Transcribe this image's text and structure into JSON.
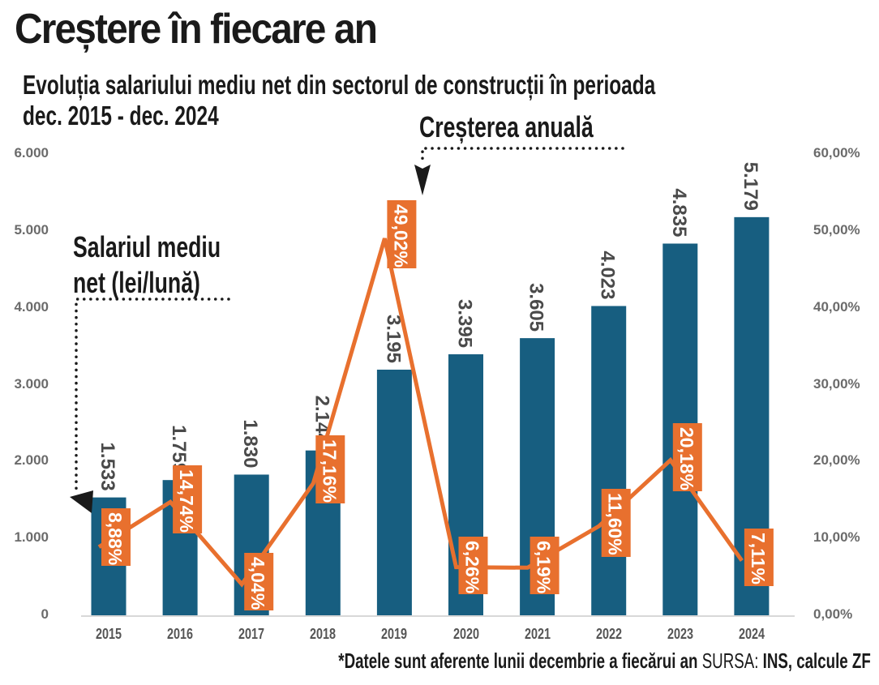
{
  "header": {
    "title": "Creștere în fiecare an",
    "subtitle_line1": "Evoluția salariului mediu net din sectorul de construcții în perioada",
    "subtitle_line2": "dec. 2015 - dec. 2024"
  },
  "annotations": {
    "growth_label": "Creșterea anuală",
    "salary_label_line1": "Salariul mediu",
    "salary_label_line2": "net (lei/lună)"
  },
  "footer": {
    "note": "*Datele sunt aferente lunii decembrie a fiecărui an",
    "source_prefix": "SURSA:",
    "source": "INS, calcule ZF"
  },
  "colors": {
    "bar": "#175e80",
    "line": "#e8702e",
    "label_box": "#e8702e",
    "axis_text": "#6b6b6b"
  },
  "chart_data": {
    "type": "bar",
    "title": "Creștere în fiecare an",
    "subtitle": "Evoluția salariului mediu net din sectorul de construcții în perioada dec. 2015 - dec. 2024",
    "categories": [
      "2015",
      "2016",
      "2017",
      "2018",
      "2019",
      "2020",
      "2021",
      "2022",
      "2023",
      "2024"
    ],
    "series": [
      {
        "name": "Salariul mediu net (lei/lună)",
        "type": "bar",
        "axis": "left",
        "values": [
          1533,
          1759,
          1830,
          2144,
          3195,
          3395,
          3605,
          4023,
          4835,
          5179
        ],
        "labels": [
          "1.533",
          "1.759",
          "1.830",
          "2.144",
          "3.195",
          "3.395",
          "3.605",
          "4.023",
          "4.835",
          "5.179"
        ]
      },
      {
        "name": "Creșterea anuală",
        "type": "line",
        "axis": "right",
        "values": [
          8.88,
          14.74,
          4.04,
          17.16,
          49.02,
          6.26,
          6.19,
          11.6,
          20.18,
          7.11
        ],
        "labels": [
          "8,88%",
          "14,74%",
          "4,04%",
          "17,16%",
          "49,02%",
          "6,26%",
          "6,19%",
          "11,60%",
          "20,18%",
          "7,11%"
        ]
      }
    ],
    "y_left": {
      "ylim": [
        0,
        6000
      ],
      "ticks": [
        0,
        1000,
        2000,
        3000,
        4000,
        5000,
        6000
      ],
      "tick_labels": [
        "0",
        "1.000",
        "2.000",
        "3.000",
        "4.000",
        "5.000",
        "6.000"
      ]
    },
    "y_right": {
      "ylim": [
        0,
        60
      ],
      "ticks": [
        0,
        10,
        20,
        30,
        40,
        50,
        60
      ],
      "tick_labels": [
        "0,00%",
        "10,00%",
        "20,00%",
        "30,00%",
        "40,00%",
        "50,00%",
        "60,00%"
      ]
    },
    "xlabel": "",
    "ylabel": "",
    "grid": false,
    "legend": "none (inline annotations)",
    "footnote": "*Datele sunt aferente lunii decembrie a fiecărui an SURSA: INS, calcule ZF"
  }
}
